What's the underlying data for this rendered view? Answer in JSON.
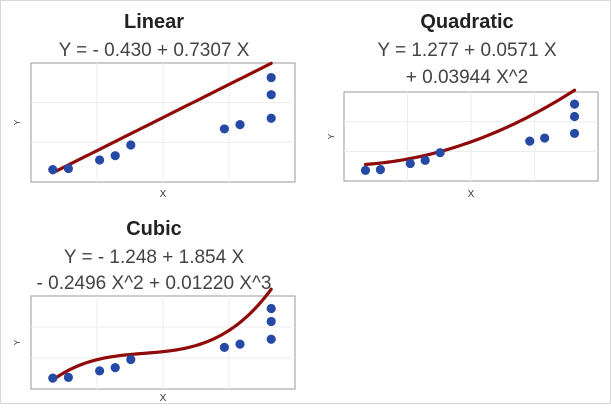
{
  "chart_data": [
    {
      "type": "scatter",
      "title": "Linear",
      "subtitle_lines": [
        "Y = - 0.430 + 0.7307 X"
      ],
      "xlabel": "X",
      "ylabel": "Y",
      "grid": true,
      "fit": {
        "model": "linear",
        "coefficients": [
          -0.43,
          0.7307
        ]
      },
      "x": [
        1,
        2,
        4,
        5,
        6,
        12,
        13,
        15,
        15,
        15
      ],
      "y": [
        0.6,
        0.7,
        1.5,
        1.9,
        2.9,
        4.4,
        4.8,
        5.4,
        7.6,
        9.2
      ],
      "xlim": [
        0.5,
        15.5
      ],
      "ylim": [
        0,
        10
      ],
      "point_color": "#2649a6",
      "fit_color": "#8f0a0a"
    },
    {
      "type": "scatter",
      "title": "Quadratic",
      "subtitle_lines": [
        "Y = 1.277 + 0.0571 X",
        "+ 0.03944 X^2"
      ],
      "xlabel": "X",
      "ylabel": "Y",
      "grid": true,
      "fit": {
        "model": "quadratic",
        "coefficients": [
          1.277,
          0.0571,
          0.03944
        ]
      },
      "x": [
        1,
        2,
        4,
        5,
        6,
        12,
        13,
        15,
        15,
        15
      ],
      "y": [
        0.6,
        0.7,
        1.5,
        1.9,
        2.9,
        4.4,
        4.8,
        5.4,
        7.6,
        9.2
      ],
      "xlim": [
        0.5,
        15.5
      ],
      "ylim": [
        0,
        10
      ],
      "point_color": "#2649a6",
      "fit_color": "#8f0a0a"
    },
    {
      "type": "scatter",
      "title": "Cubic",
      "subtitle_lines": [
        "Y = - 1.248 + 1.854 X",
        "- 0.2496 X^2 + 0.01220 X^3"
      ],
      "xlabel": "X",
      "ylabel": "Y",
      "grid": true,
      "fit": {
        "model": "cubic",
        "coefficients": [
          -1.248,
          1.854,
          -0.2496,
          0.0122
        ]
      },
      "x": [
        1,
        2,
        4,
        5,
        6,
        12,
        13,
        15,
        15,
        15
      ],
      "y": [
        0.6,
        0.7,
        1.5,
        1.9,
        2.9,
        4.4,
        4.8,
        5.4,
        7.6,
        9.2
      ],
      "xlim": [
        0.5,
        15.5
      ],
      "ylim": [
        0,
        10
      ],
      "point_color": "#2649a6",
      "fit_color": "#8f0a0a"
    }
  ]
}
